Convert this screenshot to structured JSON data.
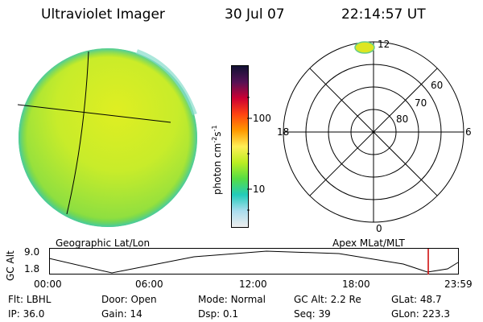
{
  "header": {
    "instrument": "Ultraviolet Imager",
    "date": "30 Jul 07",
    "time": "22:14:57 UT"
  },
  "colorbar": {
    "unit_label": "photon cm",
    "unit_exp1": "-2",
    "unit_mid": "s",
    "unit_exp2": "-1",
    "ticks": [
      "100",
      "10"
    ],
    "colors": [
      "#111133",
      "#551155",
      "#cc0033",
      "#ff4411",
      "#ff9900",
      "#ffee55",
      "#bbee22",
      "#55dd44",
      "#22ccbb",
      "#aaddee",
      "#eeeeee"
    ]
  },
  "polar": {
    "mlt_labels": {
      "top": "12",
      "left": "18",
      "right": "6",
      "bottom": "0"
    },
    "lat_labels": [
      "60",
      "70",
      "80"
    ]
  },
  "panel_labels": {
    "left": "Geographic Lat/Lon",
    "right": "Apex MLat/MLT"
  },
  "altitude_plot": {
    "ylabel": "GC Alt",
    "yticks": [
      "9.0",
      "1.8"
    ],
    "xticks": [
      "00:00",
      "06:00",
      "12:00",
      "18:00",
      "23:59"
    ],
    "current_marker_hours": 22.25,
    "marker_color": "#cc0000"
  },
  "status": {
    "row1": [
      {
        "label": "Flt:",
        "value": "LBHL"
      },
      {
        "label": "Door:",
        "value": "Open"
      },
      {
        "label": "Mode:",
        "value": "Normal"
      },
      {
        "label": "GC Alt:",
        "value": "2.2 Re"
      },
      {
        "label": "GLat:",
        "value": "48.7"
      }
    ],
    "row2": [
      {
        "label": "IP:",
        "value": "36.0"
      },
      {
        "label": "Gain:",
        "value": "14"
      },
      {
        "label": "Dsp:",
        "value": "0.1"
      },
      {
        "label": "Seq:",
        "value": "39"
      },
      {
        "label": "GLon:",
        "value": "223.3"
      }
    ]
  }
}
